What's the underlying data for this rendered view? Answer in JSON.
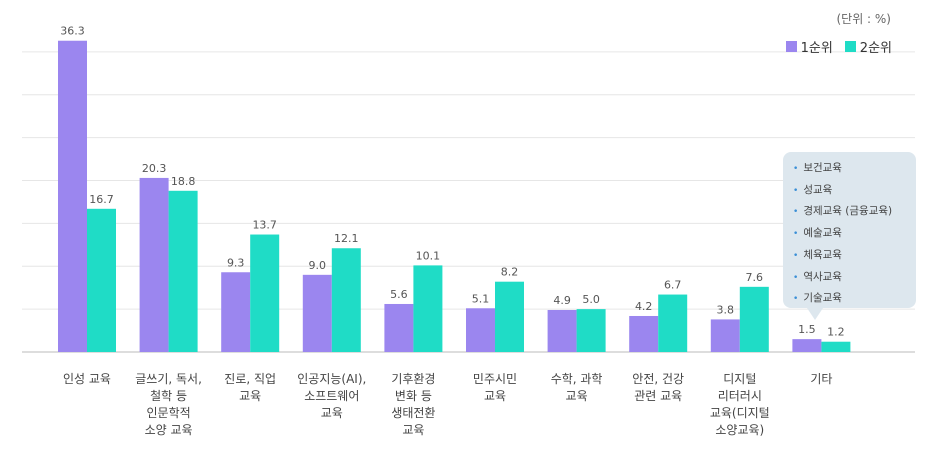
{
  "unit_label": "(단위 : %)",
  "legend": [
    {
      "label": "1순위",
      "color": "#9b86ef"
    },
    {
      "label": "2순위",
      "color": "#1fdcc6"
    }
  ],
  "callout": {
    "items": [
      "보건교육",
      "성교육",
      "경제교육 (금융교육)",
      "예술교육",
      "체육교육",
      "역사교육",
      "기술교육"
    ]
  },
  "chart_data": {
    "type": "bar",
    "title": "",
    "xlabel": "",
    "ylabel": "",
    "ylim": [
      0,
      40
    ],
    "grid": true,
    "legend_position": "top-right",
    "categories": [
      [
        "인성 교육"
      ],
      [
        "글쓰기, 독서,",
        "철학 등",
        "인문학적",
        "소양 교육"
      ],
      [
        "진로, 직업",
        "교육"
      ],
      [
        "인공지능(AI),",
        "소프트웨어",
        "교육"
      ],
      [
        "기후환경",
        "변화 등",
        "생태전환",
        "교육"
      ],
      [
        "민주시민",
        "교육"
      ],
      [
        "수학, 과학",
        "교육"
      ],
      [
        "안전, 건강",
        "관련 교육"
      ],
      [
        "디지털",
        "리터러시",
        "교육(디지털",
        "소양교육)"
      ],
      [
        "기타"
      ]
    ],
    "series": [
      {
        "name": "1순위",
        "color": "#9b86ef",
        "values": [
          36.3,
          20.3,
          9.3,
          9.0,
          5.6,
          5.1,
          4.9,
          4.2,
          3.8,
          1.5
        ],
        "labels": [
          "36.3",
          "20.3",
          "9.3",
          "9.0",
          "5.6",
          "5.1",
          "4.9",
          "4.2",
          "3.8",
          "1.5"
        ]
      },
      {
        "name": "2순위",
        "color": "#1fdcc6",
        "values": [
          16.7,
          18.8,
          13.7,
          12.1,
          10.1,
          8.2,
          5.0,
          6.7,
          7.6,
          1.2
        ],
        "labels": [
          "16.7",
          "18.8",
          "13.7",
          "12.1",
          "10.1",
          "8.2",
          "5.0",
          "6.7",
          "7.6",
          "1.2"
        ]
      }
    ]
  }
}
